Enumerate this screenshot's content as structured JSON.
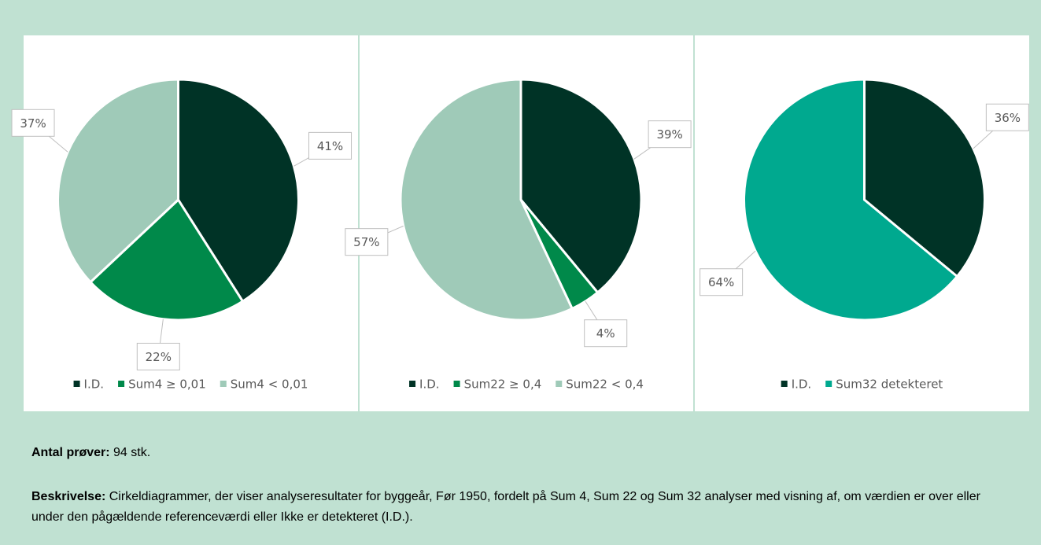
{
  "chart_data": [
    {
      "type": "pie",
      "categories": [
        "I.D.",
        "Sum4 ≥ 0,01",
        "Sum4 < 0,01"
      ],
      "values": [
        41,
        22,
        37
      ],
      "value_labels": [
        "41%",
        "22%",
        "37%"
      ],
      "colors": [
        "#003326",
        "#00894a",
        "#9fcab8"
      ]
    },
    {
      "type": "pie",
      "categories": [
        "I.D.",
        "Sum22 ≥ 0,4",
        "Sum22 < 0,4"
      ],
      "values": [
        39,
        4,
        57
      ],
      "value_labels": [
        "39%",
        "4%",
        "57%"
      ],
      "colors": [
        "#003326",
        "#00894a",
        "#9fcab8"
      ]
    },
    {
      "type": "pie",
      "categories": [
        "I.D.",
        "Sum32 detekteret"
      ],
      "values": [
        36,
        64
      ],
      "value_labels": [
        "36%",
        "64%"
      ],
      "colors": [
        "#003326",
        "#00a98f"
      ]
    }
  ],
  "info": {
    "samples_label": "Antal prøver:",
    "samples_value": "94 stk.",
    "description_label": "Beskrivelse:",
    "description": "Cirkeldiagrammer, der viser analyseresultater for byggeår, Før 1950, fordelt på Sum 4, Sum 22 og Sum 32 analyser med visning af, om værdien er over eller under den pågældende referenceværdi eller Ikke er detekteret (I.D.)."
  }
}
